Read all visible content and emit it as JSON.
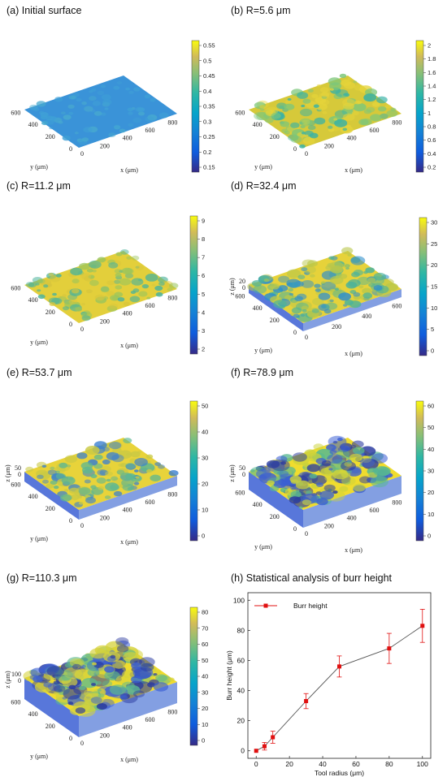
{
  "panels": [
    {
      "title": "(a) Initial surface",
      "surface_colors": [
        "#3a93d8",
        "#3fa0d6",
        "#48aacf"
      ],
      "roughness": 0.05,
      "cbar_ticks": [
        "0.55",
        "0.5",
        "0.45",
        "0.4",
        "0.35",
        "0.3",
        "0.25",
        "0.2",
        "0.15"
      ],
      "x_ticks": [
        "0",
        "200",
        "400",
        "600",
        "800"
      ],
      "y_ticks": [
        "0",
        "200",
        "400",
        "600"
      ],
      "z_ticks": [],
      "x_label": "x (μm)",
      "y_label": "y (μm)",
      "z_label": ""
    },
    {
      "title": "(b) R=5.6 μm",
      "surface_colors": [
        "#d6c93a",
        "#7cc77a",
        "#38b2a6",
        "#e5d43a"
      ],
      "roughness": 0.35,
      "cbar_ticks": [
        "2",
        "1.8",
        "1.6",
        "1.4",
        "1.2",
        "1",
        "0.8",
        "0.6",
        "0.4",
        "0.2"
      ],
      "x_ticks": [
        "0",
        "200",
        "400",
        "600",
        "800"
      ],
      "y_ticks": [
        "0",
        "200",
        "400",
        "600"
      ],
      "z_ticks": [],
      "x_label": "x (μm)",
      "y_label": "y (μm)",
      "z_label": ""
    },
    {
      "title": "(c) R=11.2 μm",
      "surface_colors": [
        "#e3cf3b",
        "#d8c63c",
        "#9ac55c",
        "#4bb39b"
      ],
      "roughness": 0.3,
      "cbar_ticks": [
        "9",
        "8",
        "7",
        "6",
        "5",
        "4",
        "3",
        "2"
      ],
      "x_ticks": [
        "0",
        "200",
        "400",
        "600",
        "800"
      ],
      "y_ticks": [
        "0",
        "200",
        "400",
        "600"
      ],
      "z_ticks": [],
      "x_label": "x (μm)",
      "y_label": "y (μm)",
      "z_label": ""
    },
    {
      "title": "(d) R=32.4 μm",
      "surface_colors": [
        "#e6d23a",
        "#b9c74a",
        "#4bb39b",
        "#2e8fcc"
      ],
      "roughness": 0.45,
      "cbar_ticks": [
        "30",
        "25",
        "20",
        "15",
        "10",
        "5",
        "0"
      ],
      "x_ticks": [
        "0",
        "200",
        "400",
        "600"
      ],
      "y_ticks": [
        "0",
        "200",
        "400",
        "600"
      ],
      "z_ticks": [
        "20",
        "0"
      ],
      "x_label": "x (μm)",
      "y_label": "y (μm)",
      "z_label": "z (μm)"
    },
    {
      "title": "(e) R=53.7 μm",
      "surface_colors": [
        "#e8d33a",
        "#c9c944",
        "#5db792",
        "#3a7fd0"
      ],
      "roughness": 0.4,
      "cbar_ticks": [
        "50",
        "40",
        "30",
        "20",
        "10",
        "0"
      ],
      "x_ticks": [
        "0",
        "200",
        "400",
        "600",
        "800"
      ],
      "y_ticks": [
        "0",
        "200",
        "400",
        "600"
      ],
      "z_ticks": [
        "50",
        "0"
      ],
      "x_label": "x (μm)",
      "y_label": "y (μm)",
      "z_label": "z (μm)"
    },
    {
      "title": "(f) R=78.9 μm",
      "surface_colors": [
        "#f0dc2e",
        "#cbd23c",
        "#57b890",
        "#3b5fd4",
        "#2a3aa0"
      ],
      "roughness": 0.75,
      "cbar_ticks": [
        "60",
        "50",
        "40",
        "30",
        "20",
        "10",
        "0"
      ],
      "x_ticks": [
        "0",
        "200",
        "400",
        "600",
        "800"
      ],
      "y_ticks": [
        "0",
        "200",
        "400",
        "600"
      ],
      "z_ticks": [
        "50",
        "0"
      ],
      "x_label": "x (μm)",
      "y_label": "y (μm)",
      "z_label": "z (μm)"
    },
    {
      "title": "(g) R=110.3 μm",
      "surface_colors": [
        "#f0dc2e",
        "#d6d23a",
        "#5cb98e",
        "#3b5fd4",
        "#2a3aa0"
      ],
      "roughness": 0.85,
      "cbar_ticks": [
        "80",
        "70",
        "60",
        "50",
        "40",
        "30",
        "20",
        "10",
        "0"
      ],
      "x_ticks": [
        "0",
        "200",
        "400",
        "600",
        "800"
      ],
      "y_ticks": [
        "0",
        "200",
        "400",
        "600"
      ],
      "z_ticks": [
        "100",
        "0"
      ],
      "x_label": "x (μm)",
      "y_label": "y (μm)",
      "z_label": "z (μm)"
    }
  ],
  "chart_data": {
    "type": "line",
    "title": "(h) Statistical analysis of burr height",
    "xlabel": "Tool radius (μm)",
    "ylabel": "Burr height (μm)",
    "xlim": [
      -5,
      105
    ],
    "ylim": [
      -5,
      105
    ],
    "x_ticks": [
      0,
      20,
      40,
      60,
      80,
      100
    ],
    "y_ticks": [
      0,
      20,
      40,
      60,
      80,
      100
    ],
    "series": [
      {
        "name": "Burr height",
        "color": "#e01010",
        "x": [
          0,
          5.6,
          11.2,
          32.4,
          53.7,
          78.9,
          110.3
        ],
        "plot_x": [
          0,
          5,
          10,
          30,
          50,
          80,
          100
        ],
        "y": [
          0,
          3,
          9,
          33,
          56,
          68,
          83
        ],
        "err": [
          0,
          2.5,
          4,
          5,
          7,
          10,
          11
        ]
      }
    ],
    "legend": "top-left",
    "grid": false
  }
}
